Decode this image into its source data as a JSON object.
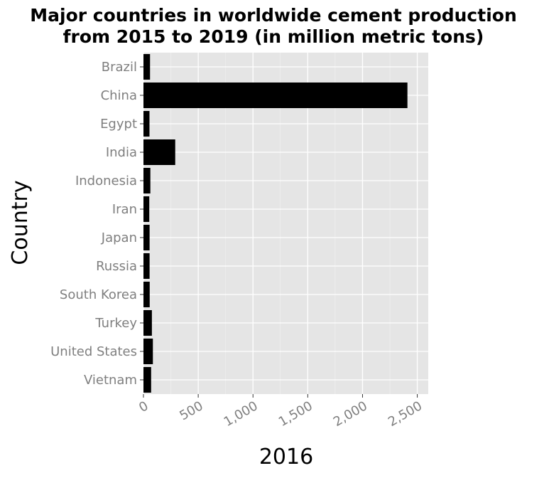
{
  "chart_data": {
    "type": "bar",
    "orientation": "horizontal",
    "title": "Major countries in worldwide cement production from 2015 to 2019 (in million metric tons)",
    "title_lines": [
      "Major countries in worldwide cement production",
      "from 2015 to 2019 (in million metric tons)"
    ],
    "xlabel": "2016",
    "ylabel": "Country",
    "xlim": [
      0,
      2600
    ],
    "x_ticks": [
      0,
      500,
      1000,
      1500,
      2000,
      2500
    ],
    "x_tick_labels": [
      "0",
      "500",
      "1,000",
      "1,500",
      "2,000",
      "2,500"
    ],
    "categories": [
      "Brazil",
      "China",
      "Egypt",
      "India",
      "Indonesia",
      "Iran",
      "Japan",
      "Russia",
      "South Korea",
      "Turkey",
      "United States",
      "Vietnam"
    ],
    "values": [
      60,
      2410,
      55,
      290,
      63,
      53,
      56,
      56,
      57,
      77,
      86,
      70
    ],
    "grid": true,
    "colors": {
      "bar": "#000000",
      "panel": "#e5e5e5",
      "grid": "#ffffff",
      "tick_text": "#7f7f7f"
    }
  }
}
